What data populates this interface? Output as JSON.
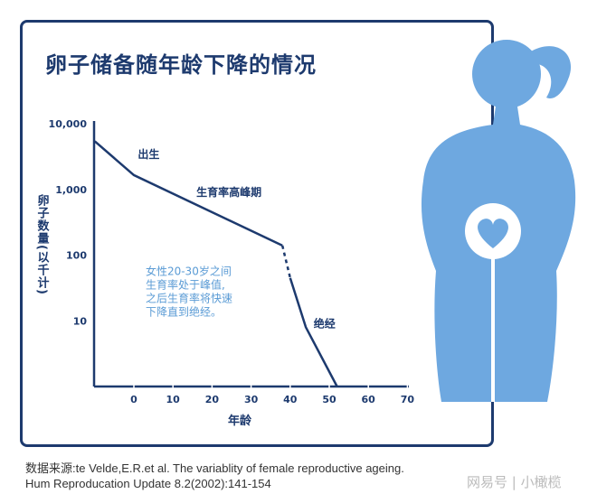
{
  "title": "卵子储备随年龄下降的情况",
  "chart_data": {
    "type": "line",
    "title": "卵子储备随年龄下降的情况",
    "xlabel": "年龄",
    "ylabel": "卵子数量(以千计)",
    "yscale": "log",
    "xlim": [
      -10,
      70
    ],
    "ylim": [
      1,
      10000
    ],
    "xticks": [
      "0",
      "10",
      "20",
      "30",
      "40",
      "50",
      "60",
      "70"
    ],
    "yticks": [
      "10,000",
      "1,000",
      "100",
      "10"
    ],
    "series": [
      {
        "x": [
          -10,
          0,
          38
        ],
        "y": [
          5400,
          1650,
          140
        ],
        "style": "solid"
      },
      {
        "x": [
          38,
          40
        ],
        "y": [
          140,
          45
        ],
        "style": "dashed"
      },
      {
        "x": [
          40,
          44,
          52
        ],
        "y": [
          45,
          8,
          1
        ],
        "style": "solid"
      }
    ],
    "annotations": [
      {
        "text": "出生",
        "x": 1,
        "y": 3000
      },
      {
        "text": "生育率高峰期",
        "x": 16,
        "y": 800
      },
      {
        "text": "绝经",
        "x": 46,
        "y": 8
      },
      {
        "text": "女性20-30岁之间\n生育率处于峰值,\n之后生育率将快速\n下降直到绝经。",
        "x": 3,
        "y": 50,
        "color": "#5a9bd5"
      }
    ],
    "grid": false,
    "line_color": "#1d3a6e"
  },
  "source": {
    "line1": "数据来源:te Velde,E.R.et al. The variablity of female reproductive ageing.",
    "line2": "Hum Reproducation Update 8.2(2002):141-154"
  },
  "watermark": "网易号 | 小橄榄",
  "colors": {
    "navy": "#1d3a6e",
    "figure": "#6ea8e0",
    "note": "#5a9bd5"
  }
}
